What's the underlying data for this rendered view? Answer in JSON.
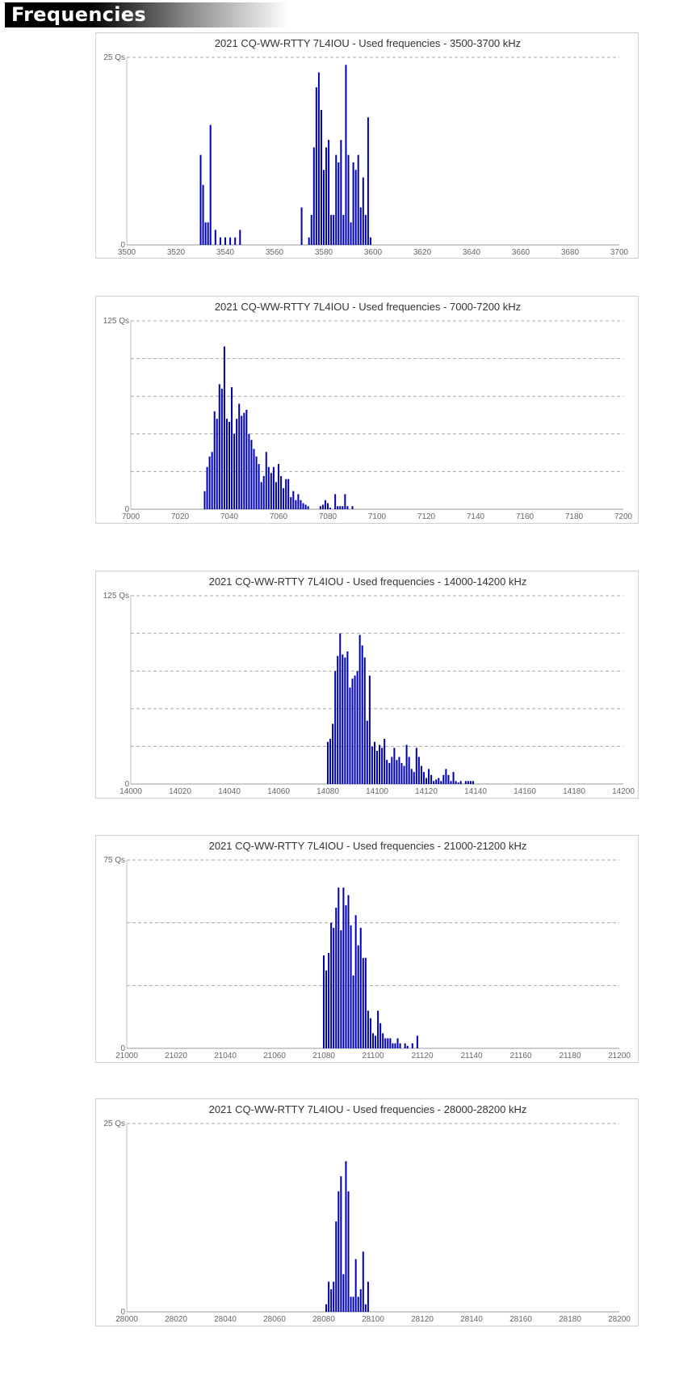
{
  "section": {
    "title": "Frequencies"
  },
  "chart_data": [
    {
      "type": "bar",
      "title": "2021 CQ-WW-RTTY 7L4IOU - Used frequencies - 3500-3700 kHz",
      "xlim": [
        3500,
        3700
      ],
      "x_ticks": [
        3500,
        3520,
        3540,
        3560,
        3580,
        3600,
        3620,
        3640,
        3660,
        3680,
        3700
      ],
      "ylim": [
        0,
        25
      ],
      "y_tick_labels": [
        "0",
        "25 Qs"
      ],
      "grid_lines": 1,
      "x": [
        3530,
        3531,
        3532,
        3533,
        3534,
        3536,
        3538,
        3540,
        3542,
        3544,
        3546,
        3571,
        3574,
        3575,
        3576,
        3577,
        3578,
        3579,
        3580,
        3581,
        3582,
        3583,
        3584,
        3585,
        3586,
        3587,
        3588,
        3589,
        3590,
        3591,
        3592,
        3593,
        3594,
        3595,
        3596,
        3597,
        3598,
        3599
      ],
      "values": [
        12,
        8,
        3,
        3,
        16,
        2,
        1,
        1,
        1,
        1,
        2,
        5,
        1,
        4,
        13,
        21,
        23,
        18,
        10,
        13,
        14,
        4,
        4,
        12,
        11,
        14,
        4,
        24,
        12,
        3,
        11,
        10,
        12,
        5,
        9,
        4,
        17,
        1
      ]
    },
    {
      "type": "bar",
      "title": "2021 CQ-WW-RTTY 7L4IOU - Used frequencies - 7000-7200 kHz",
      "xlim": [
        7000,
        7200
      ],
      "x_ticks": [
        7000,
        7020,
        7040,
        7060,
        7080,
        7100,
        7120,
        7140,
        7160,
        7180,
        7200
      ],
      "ylim": [
        0,
        125
      ],
      "y_tick_labels": [
        "0",
        "125 Qs"
      ],
      "grid_lines": 5,
      "x": [
        7030,
        7031,
        7032,
        7033,
        7034,
        7035,
        7036,
        7037,
        7038,
        7039,
        7040,
        7041,
        7042,
        7043,
        7044,
        7045,
        7046,
        7047,
        7048,
        7049,
        7050,
        7051,
        7052,
        7053,
        7054,
        7055,
        7056,
        7057,
        7058,
        7059,
        7060,
        7061,
        7062,
        7063,
        7064,
        7065,
        7066,
        7067,
        7068,
        7069,
        7070,
        7071,
        7072,
        7077,
        7078,
        7079,
        7080,
        7081,
        7083,
        7084,
        7085,
        7086,
        7087,
        7088,
        7090
      ],
      "values": [
        12,
        28,
        35,
        38,
        65,
        60,
        83,
        80,
        108,
        60,
        58,
        81,
        50,
        60,
        70,
        62,
        64,
        66,
        50,
        46,
        40,
        35,
        30,
        18,
        22,
        38,
        28,
        24,
        28,
        18,
        30,
        22,
        14,
        20,
        20,
        8,
        12,
        6,
        10,
        6,
        4,
        3,
        2,
        2,
        3,
        6,
        4,
        1,
        10,
        2,
        2,
        2,
        10,
        2,
        2
      ]
    },
    {
      "type": "bar",
      "title": "2021 CQ-WW-RTTY 7L4IOU - Used frequencies - 14000-14200 kHz",
      "xlim": [
        14000,
        14200
      ],
      "x_ticks": [
        14000,
        14020,
        14040,
        14060,
        14080,
        14100,
        14120,
        14140,
        14160,
        14180,
        14200
      ],
      "ylim": [
        0,
        125
      ],
      "y_tick_labels": [
        "0",
        "125 Qs"
      ],
      "grid_lines": 5,
      "x": [
        14080,
        14081,
        14082,
        14083,
        14084,
        14085,
        14086,
        14087,
        14088,
        14089,
        14090,
        14091,
        14092,
        14093,
        14094,
        14095,
        14096,
        14097,
        14098,
        14099,
        14100,
        14101,
        14102,
        14103,
        14104,
        14105,
        14106,
        14107,
        14108,
        14109,
        14110,
        14111,
        14112,
        14113,
        14114,
        14115,
        14116,
        14117,
        14118,
        14119,
        14120,
        14121,
        14122,
        14123,
        14124,
        14125,
        14126,
        14127,
        14128,
        14129,
        14130,
        14131,
        14132,
        14133,
        14134,
        14136,
        14137,
        14138,
        14139
      ],
      "values": [
        28,
        30,
        40,
        75,
        85,
        100,
        86,
        84,
        88,
        64,
        70,
        72,
        75,
        99,
        92,
        84,
        42,
        72,
        25,
        28,
        22,
        26,
        24,
        30,
        16,
        14,
        18,
        24,
        16,
        18,
        14,
        12,
        26,
        18,
        10,
        8,
        24,
        18,
        12,
        8,
        4,
        10,
        6,
        2,
        3,
        4,
        2,
        6,
        10,
        6,
        2,
        8,
        2,
        1,
        2,
        2,
        2,
        2,
        2
      ]
    },
    {
      "type": "bar",
      "title": "2021 CQ-WW-RTTY 7L4IOU - Used frequencies - 21000-21200 kHz",
      "xlim": [
        21000,
        21200
      ],
      "x_ticks": [
        21000,
        21020,
        21040,
        21060,
        21080,
        21100,
        21120,
        21140,
        21160,
        21180,
        21200
      ],
      "ylim": [
        0,
        75
      ],
      "y_tick_labels": [
        "0",
        "75 Qs"
      ],
      "grid_lines": 3,
      "x": [
        21080,
        21081,
        21082,
        21083,
        21084,
        21085,
        21086,
        21087,
        21088,
        21089,
        21090,
        21091,
        21092,
        21093,
        21094,
        21095,
        21096,
        21097,
        21098,
        21099,
        21100,
        21101,
        21102,
        21103,
        21104,
        21105,
        21106,
        21107,
        21108,
        21109,
        21110,
        21111,
        21113,
        21114,
        21116,
        21118
      ],
      "values": [
        37,
        31,
        38,
        50,
        48,
        56,
        64,
        47,
        64,
        57,
        61,
        49,
        29,
        53,
        41,
        48,
        36,
        36,
        15,
        12,
        6,
        5,
        15,
        10,
        6,
        4,
        4,
        4,
        2,
        2,
        4,
        2,
        2,
        1,
        2,
        5
      ]
    },
    {
      "type": "bar",
      "title": "2021 CQ-WW-RTTY 7L4IOU - Used frequencies - 28000-28200 kHz",
      "xlim": [
        28000,
        28200
      ],
      "x_ticks": [
        28000,
        28020,
        28040,
        28060,
        28080,
        28100,
        28120,
        28140,
        28160,
        28180,
        28200
      ],
      "ylim": [
        0,
        25
      ],
      "y_tick_labels": [
        "0",
        "25 Qs"
      ],
      "grid_lines": 1,
      "x": [
        28081,
        28082,
        28083,
        28084,
        28085,
        28086,
        28087,
        28088,
        28089,
        28090,
        28091,
        28092,
        28093,
        28094,
        28095,
        28096,
        28097,
        28098
      ],
      "values": [
        1,
        4,
        3,
        4,
        12,
        16,
        18,
        5,
        20,
        16,
        2,
        2,
        7,
        2,
        3,
        8,
        1,
        4
      ]
    }
  ]
}
